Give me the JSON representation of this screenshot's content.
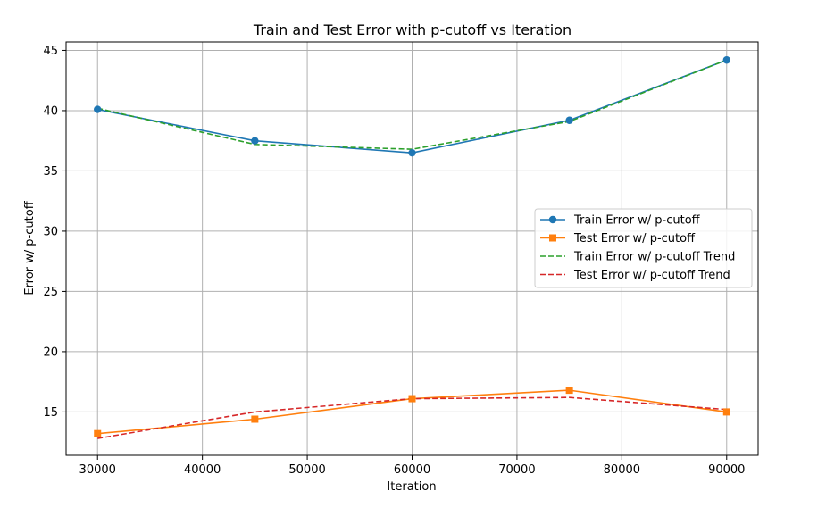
{
  "chart_data": {
    "type": "line",
    "title": "Train and Test Error with p-cutoff vs Iteration",
    "xlabel": "Iteration",
    "ylabel": "Error w/ p-cutoff",
    "xlim": [
      27000,
      93000
    ],
    "ylim": [
      11.4,
      45.7
    ],
    "xticks": [
      30000,
      40000,
      50000,
      60000,
      70000,
      80000,
      90000
    ],
    "yticks": [
      15,
      20,
      25,
      30,
      35,
      40,
      45
    ],
    "grid": true,
    "legend_position": "center-right",
    "x": [
      30000,
      45000,
      60000,
      75000,
      90000
    ],
    "series": [
      {
        "name": "Train Error w/ p-cutoff",
        "values": [
          40.1,
          37.5,
          36.5,
          39.2,
          44.2
        ],
        "color": "#1f77b4",
        "style": "solid",
        "marker": "circle"
      },
      {
        "name": "Test Error w/ p-cutoff",
        "values": [
          13.2,
          14.4,
          16.1,
          16.8,
          15.0
        ],
        "color": "#ff7f0e",
        "style": "solid",
        "marker": "square"
      },
      {
        "name": "Train Error w/ p-cutoff Trend",
        "values": [
          40.2,
          37.2,
          36.8,
          39.1,
          44.2
        ],
        "color": "#2ca02c",
        "style": "dashed",
        "marker": "none"
      },
      {
        "name": "Test Error w/ p-cutoff Trend",
        "values": [
          12.8,
          15.0,
          16.1,
          16.2,
          15.2
        ],
        "color": "#d62728",
        "style": "dashed",
        "marker": "none"
      }
    ]
  }
}
